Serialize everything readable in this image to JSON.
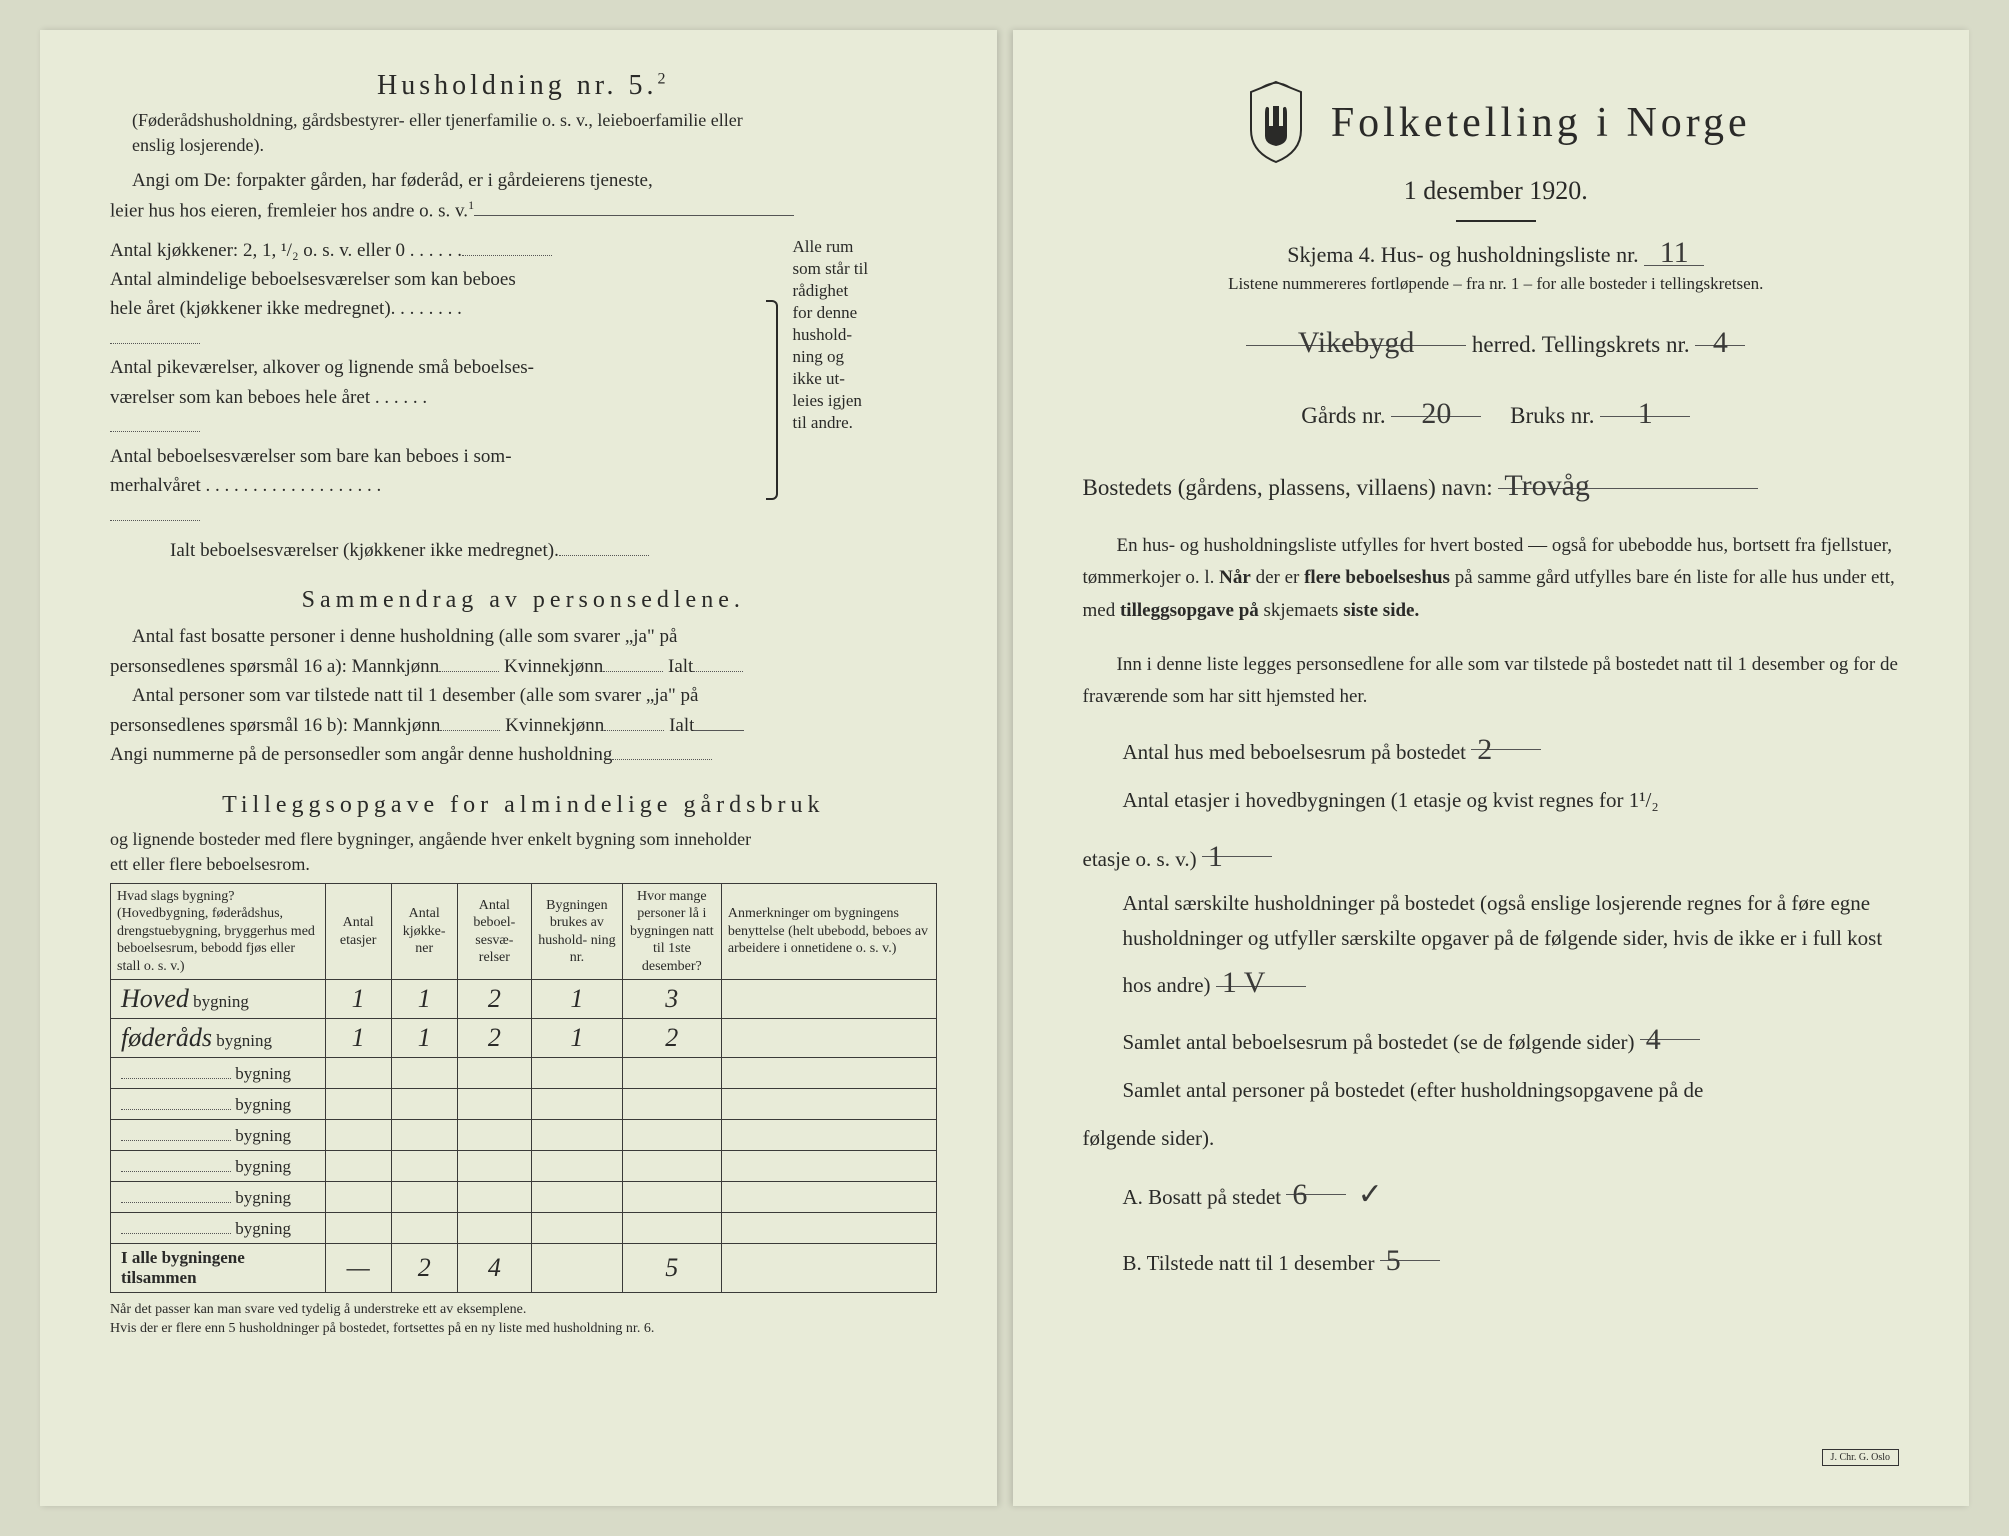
{
  "left": {
    "household_title": "Husholdning nr. 5.",
    "household_sup": "2",
    "household_note": "(Føderådshusholdning, gårdsbestyrer- eller tjenerfamilie o. s. v., leieboerfamilie eller\nenslig losjerende).",
    "angi_line1": "Angi om De:  forpakter gården, har føderåd, er i gårdeierens tjeneste,",
    "angi_line2": "leier hus hos eieren, fremleier hos andre o. s. v.",
    "kitchen_line": "Antal kjøkkener: 2, 1, ¹/₂ o. s. v. eller 0 . . . . . .",
    "rooms_lines": [
      "Antal almindelige beboelsesværelser som kan beboes\n  hele året (kjøkkener ikke medregnet). . . . . . . .",
      "Antal pikeværelser, alkover og lignende små beboelses-\n  værelser som kan beboes hele året . . . . . .",
      "Antal beboelsesværelser som bare kan beboes i som-\n  merhalvåret . . . . . . . . . . . . . . . . . . ."
    ],
    "ialt_line": "Ialt beboelsesværelser (kjøkkener ikke medregnet).",
    "side_note": "Alle rum\nsom står til\nrådighet\nfor denne\nhushold-\nning og\nikke ut-\nleies igjen\ntil andre.",
    "summary_h": "Sammendrag av personsedlene.",
    "summary_l1": "Antal fast bosatte personer i denne husholdning (alle som svarer „ja\" på",
    "summary_l2": "personsedlenes spørsmål 16 a): Mannkjønn",
    "summary_l2b": "Kvinnekjønn",
    "summary_l2c": "Ialt",
    "summary_l3": "Antal personer som var tilstede natt til 1 desember (alle som svarer „ja\" på",
    "summary_l4": "personsedlenes spørsmål 16 b): Mannkjønn",
    "summary_l5": "Angi nummerne på de personsedler som angår denne husholdning",
    "tillegg_h": "Tilleggsopgave for almindelige gårdsbruk",
    "tillegg_sub": "og lignende bosteder med flere bygninger, angående hver enkelt bygning som inneholder\nett eller flere beboelsesrom.",
    "table": {
      "headers": [
        "Hvad slags bygning?\n(Hovedbygning, føderådshus, drengstuebygning, bryggerhus med beboelsesrum, bebodd fjøs eller stall o. s. v.)",
        "Antal\netasjer",
        "Antal\nkjøkke-\nner",
        "Antal\nbeboel-\nsesvæ-\nrelser",
        "Bygningen\nbrukes av\nhushold-\nning nr.",
        "Hvor mange\npersoner lå\ni bygningen\nnatt til 1ste\ndesember?",
        "Anmerkninger om bygningens benyttelse (helt ubebodd, beboes av arbeidere i onnetidene o. s. v.)"
      ],
      "row_suffix": "bygning",
      "rows": [
        {
          "prefix": "Hoved",
          "vals": [
            "1",
            "1",
            "2",
            "1",
            "3",
            ""
          ]
        },
        {
          "prefix": "føderåds",
          "vals": [
            "1",
            "1",
            "2",
            "1",
            "2",
            ""
          ]
        },
        {
          "prefix": "",
          "vals": [
            "",
            "",
            "",
            "",
            "",
            ""
          ]
        },
        {
          "prefix": "",
          "vals": [
            "",
            "",
            "",
            "",
            "",
            ""
          ]
        },
        {
          "prefix": "",
          "vals": [
            "",
            "",
            "",
            "",
            "",
            ""
          ]
        },
        {
          "prefix": "",
          "vals": [
            "",
            "",
            "",
            "",
            "",
            ""
          ]
        },
        {
          "prefix": "",
          "vals": [
            "",
            "",
            "",
            "",
            "",
            ""
          ]
        },
        {
          "prefix": "",
          "vals": [
            "",
            "",
            "",
            "",
            "",
            ""
          ]
        }
      ],
      "total_label": "I alle bygningene tilsammen",
      "total_vals": [
        "—",
        "2",
        "4",
        "",
        "5",
        ""
      ]
    },
    "footnote": "Når det passer kan man svare ved tydelig å understreke ett av eksemplene.\nHvis der er flere enn 5 husholdninger på bostedet, fortsettes på en ny liste med husholdning nr. 6."
  },
  "right": {
    "main_title": "Folketelling i Norge",
    "date": "1 desember 1920.",
    "schema_line": "Skjema 4.  Hus- og husholdningsliste nr.",
    "schema_val": "11",
    "list_note": "Listene nummereres fortløpende – fra nr. 1 – for alle bosteder i tellingskretsen.",
    "herred_val": "Vikebygd",
    "herred_label": "herred.   Tellingskrets nr.",
    "krets_val": "4",
    "gard_label": "Gårds nr.",
    "gard_val": "20",
    "bruk_label": "Bruks nr.",
    "bruk_val": "1",
    "bosted_label": "Bostedets (gårdens, plassens, villaens) navn:",
    "bosted_val": "Trovåg",
    "para1": "En hus- og husholdningsliste utfylles for hvert bosted — også for ubebodde hus, bortsett fra fjellstuer, tømmerkojer o. l. Når der er flere beboelseshus på samme gård utfylles bare én liste for alle hus under ett, med tilleggsopgave på skjemaets siste side.",
    "para2": "Inn i denne liste legges personsedlene for alle som var tilstede på bostedet natt til 1 desember og for de fraværende som har sitt hjemsted her.",
    "q1": "Antal hus med beboelsesrum på bostedet",
    "q1_val": "2",
    "q2a": "Antal etasjer i hovedbygningen (1 etasje og kvist regnes for 1¹/₂",
    "q2b": "etasje o. s. v.)",
    "q2_val": "1",
    "q3a": "Antal særskilte husholdninger på bostedet (også enslige losjerende regnes for å føre egne husholdninger og utfyller særskilte opgaver på de følgende sider, hvis de ikke er i full kost hos andre)",
    "q3_val": "1 V",
    "q4": "Samlet antal beboelsesrum på bostedet (se de følgende sider)",
    "q4_val": "4",
    "q5a": "Samlet antal personer på bostedet (efter husholdningsopgavene på de",
    "q5b": "følgende sider).",
    "qA": "A.  Bosatt på stedet",
    "qA_val": "6",
    "qB": "B.  Tilstede natt til 1 desember",
    "qB_val": "5"
  },
  "colors": {
    "paper": "#e8ebd8",
    "bg": "#d8dbc8",
    "ink": "#2a2a28"
  }
}
